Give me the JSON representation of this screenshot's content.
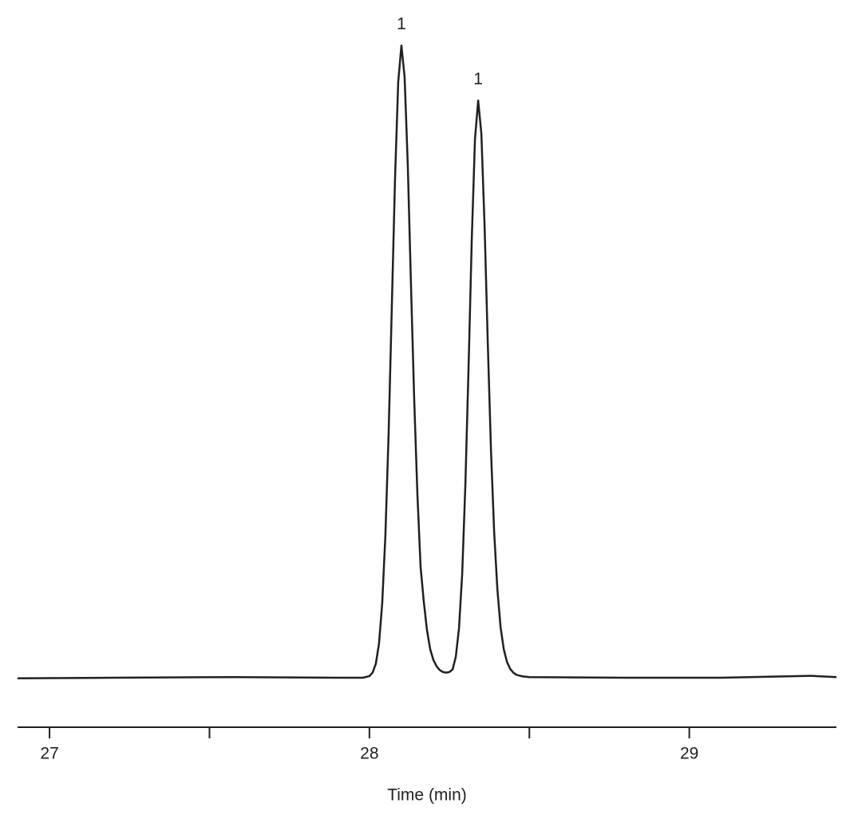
{
  "chart_data": {
    "type": "line",
    "x_label": "Time (min)",
    "xlim": [
      26.9,
      29.46
    ],
    "xticks": [
      27,
      28,
      29
    ],
    "xminorticks": [
      27.5,
      28.5
    ],
    "ylim": [
      0,
      100
    ],
    "series": [
      {
        "color": "#231f20",
        "x": [
          26.9,
          27.2,
          27.58,
          27.9,
          27.98,
          28.0,
          28.01,
          28.02,
          28.03,
          28.04,
          28.05,
          28.06,
          28.07,
          28.08,
          28.09,
          28.1,
          28.11,
          28.12,
          28.13,
          28.14,
          28.15,
          28.16,
          28.17,
          28.18,
          28.19,
          28.2,
          28.21,
          28.22,
          28.23,
          28.24,
          28.25,
          28.26,
          28.27,
          28.28,
          28.29,
          28.3,
          28.31,
          28.32,
          28.33,
          28.34,
          28.35,
          28.36,
          28.37,
          28.38,
          28.39,
          28.4,
          28.41,
          28.42,
          28.43,
          28.44,
          28.45,
          28.46,
          28.48,
          28.5,
          28.8,
          29.1,
          29.38,
          29.46
        ],
        "values": [
          -0.1,
          0.0,
          0.1,
          0.0,
          0.0,
          0.26,
          0.81,
          2.2,
          5.4,
          11.8,
          22.6,
          38.6,
          58.6,
          78.8,
          94.2,
          100,
          95,
          81,
          62,
          44,
          29,
          17.5,
          12,
          7.5,
          4.5,
          2.8,
          1.8,
          1.2,
          0.9,
          0.8,
          0.9,
          1.3,
          3.3,
          7.8,
          16.4,
          30.6,
          49.2,
          69.4,
          85.2,
          91.3,
          86,
          71.5,
          53,
          36,
          23,
          14,
          8,
          4.5,
          2.5,
          1.4,
          0.8,
          0.45,
          0.2,
          0.1,
          0.0,
          0.0,
          0.3,
          0.1
        ]
      }
    ],
    "annotations": [
      {
        "text": "1",
        "x": 28.1
      },
      {
        "text": "1",
        "x": 28.34
      }
    ]
  }
}
